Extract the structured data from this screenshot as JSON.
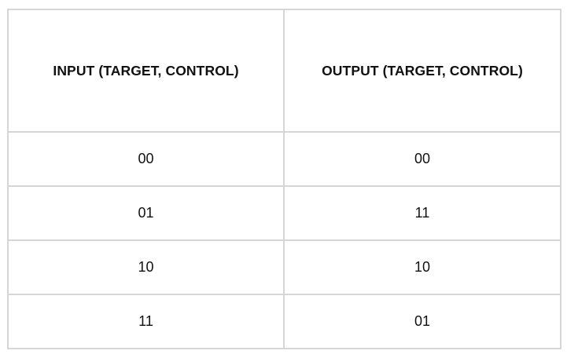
{
  "table": {
    "headers": [
      "INPUT (TARGET, CONTROL)",
      "OUTPUT (TARGET, CONTROL)"
    ],
    "rows": [
      [
        "00",
        "00"
      ],
      [
        "01",
        "11"
      ],
      [
        "10",
        "10"
      ],
      [
        "11",
        "01"
      ]
    ]
  }
}
